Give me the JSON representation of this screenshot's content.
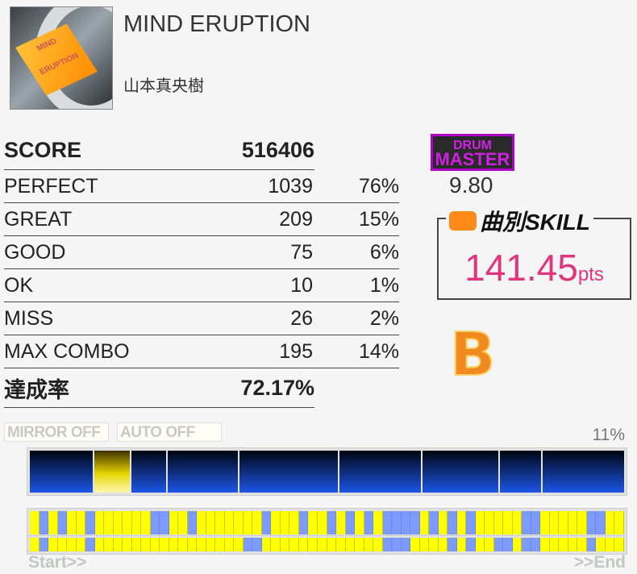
{
  "song": {
    "title": "MIND ERUPTION",
    "artist": "山本真央樹",
    "art_text": "MIND ERUPTION"
  },
  "results": {
    "score_label": "SCORE",
    "score": "516406",
    "rows": [
      {
        "label": "PERFECT",
        "count": "1039",
        "pct": "76%"
      },
      {
        "label": "GREAT",
        "count": "209",
        "pct": "15%"
      },
      {
        "label": "GOOD",
        "count": "75",
        "pct": "6%"
      },
      {
        "label": "OK",
        "count": "10",
        "pct": "1%"
      },
      {
        "label": "MISS",
        "count": "26",
        "pct": "2%"
      },
      {
        "label": "MAX COMBO",
        "count": "195",
        "pct": "14%"
      }
    ],
    "achievement_label": "達成率",
    "achievement": "72.17%"
  },
  "difficulty": {
    "badge_line1": "DRUM",
    "badge_line2": "MASTER",
    "level": "9.80",
    "color": "#b000c8"
  },
  "skill": {
    "label": "曲別SKILL",
    "value": "141.45",
    "unit": "pts",
    "color": "#e0357f"
  },
  "rank": "B",
  "options": {
    "mirror": "MIRROR OFF",
    "auto": "AUTO OFF"
  },
  "progress": {
    "percent": "11%",
    "current_section": 2
  },
  "timeline": {
    "row1": "YBYBYYBYYYYYYBBYYBYYYYYYYBYYYBYYBYBYBYBBBBYBYBYBYYYYYBBYYYYYBBYY",
    "row2": "YBYYYYBYYYYYYYYYYYYYYYYBBYYYYYYYYYYYYYBBBYYYYBYBYYBBYBBYYYYYBYYY",
    "start_label": "Start>>",
    "end_label": ">>End",
    "colors": {
      "Y": "#ffff00",
      "B": "#7d9bff"
    }
  }
}
